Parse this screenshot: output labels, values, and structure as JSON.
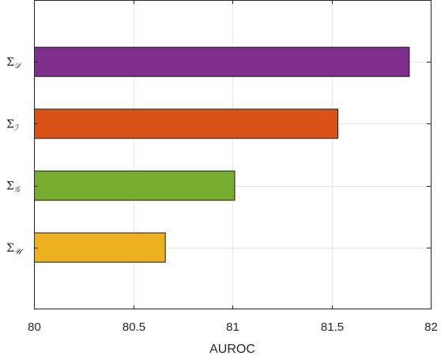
{
  "chart_data": {
    "type": "bar",
    "orientation": "horizontal",
    "title": "",
    "xlabel": "AUROC",
    "ylabel": "",
    "xlim": [
      80,
      82
    ],
    "xticks": [
      "80",
      "80.5",
      "81",
      "81.5",
      "82"
    ],
    "grid": true,
    "categories": [
      {
        "base": "Σ",
        "sub": "𝒟",
        "value": 81.89,
        "color": "#7E2F8E"
      },
      {
        "base": "Σ",
        "sub": "ℐ",
        "value": 81.53,
        "color": "#D95319"
      },
      {
        "base": "Σ",
        "sub": "𝒢",
        "value": 81.01,
        "color": "#77AC30"
      },
      {
        "base": "Σ",
        "sub": "𝒰",
        "value": 80.66,
        "color": "#EDB120"
      }
    ]
  }
}
